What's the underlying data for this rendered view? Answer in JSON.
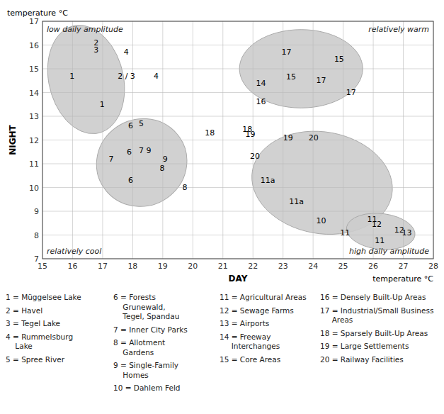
{
  "chart_data": {
    "type": "scatter",
    "xlabel": "DAY",
    "ylabel": "NIGHT",
    "temp_label": "temperature °C",
    "xlim": [
      15,
      28
    ],
    "ylim": [
      7,
      17
    ],
    "xticks": [
      15,
      16,
      17,
      18,
      19,
      20,
      21,
      22,
      23,
      24,
      25,
      26,
      27,
      28
    ],
    "yticks": [
      7,
      8,
      9,
      10,
      11,
      12,
      13,
      14,
      15,
      16,
      17
    ],
    "grid": true,
    "annotations": [
      "low daily amplitude",
      "relatively warm",
      "relatively cool",
      "high daily amplitude"
    ],
    "point_labels": [
      "1",
      "1",
      "2",
      "3",
      "4",
      "2 / 3",
      "4",
      "6",
      "5",
      "7",
      "6",
      "7",
      "9",
      "6",
      "8",
      "9",
      "8",
      "18",
      "18",
      "19",
      "20",
      "19",
      "20",
      "11a",
      "11a",
      "14",
      "16",
      "15",
      "17",
      "17",
      "15",
      "17",
      "10",
      "11",
      "11",
      "12",
      "11",
      "12",
      "13"
    ],
    "x": [
      15.9,
      16.9,
      16.7,
      16.7,
      17.7,
      17.5,
      18.7,
      17.85,
      18.2,
      17.2,
      17.8,
      18.2,
      18.45,
      17.85,
      18.9,
      19.0,
      19.65,
      20.4,
      21.65,
      21.75,
      21.9,
      23.0,
      23.85,
      22.25,
      23.2,
      22.1,
      22.1,
      23.1,
      22.95,
      24.1,
      24.7,
      25.1,
      24.1,
      24.9,
      25.8,
      25.95,
      26.05,
      26.7,
      26.95
    ],
    "values": [
      14.7,
      13.5,
      16.1,
      15.8,
      15.7,
      14.7,
      14.7,
      12.6,
      12.7,
      11.2,
      11.5,
      11.55,
      11.55,
      10.3,
      10.8,
      11.2,
      10.0,
      12.3,
      12.45,
      12.25,
      11.3,
      12.1,
      12.1,
      10.3,
      9.4,
      14.4,
      13.6,
      14.65,
      15.7,
      14.5,
      15.4,
      14.0,
      8.6,
      8.1,
      8.65,
      8.45,
      7.75,
      8.2,
      8.1
    ],
    "ellipses": [
      {
        "cx": 16.45,
        "cy": 14.55,
        "rx": 1.25,
        "ry": 2.3,
        "angle": 8
      },
      {
        "cx": 18.3,
        "cy": 11.05,
        "rx": 1.5,
        "ry": 1.85,
        "angle": -5
      },
      {
        "cx": 23.6,
        "cy": 15.0,
        "rx": 2.05,
        "ry": 1.65,
        "angle": 0
      },
      {
        "cx": 24.3,
        "cy": 10.2,
        "rx": 2.4,
        "ry": 2.1,
        "angle": -28
      },
      {
        "cx": 26.25,
        "cy": 8.15,
        "rx": 1.15,
        "ry": 0.75,
        "angle": -10
      }
    ],
    "ellipse_color": "#cccccc",
    "ellipse_edge_color": "#aaaaaa",
    "legend_text": [
      [
        [
          "1 = Müggelsee Lake"
        ],
        [
          "2 = Havel"
        ],
        [
          "3 = Tegel Lake"
        ],
        [
          "4 = Rummelsburg",
          "    Lake"
        ],
        [
          "5 = Spree River"
        ]
      ],
      [
        [
          "6 = Forests",
          "    Grunewald,",
          "    Tegel, Spandau"
        ],
        [
          "7 = Inner City Parks"
        ],
        [
          "8 = Allotment",
          "    Gardens"
        ],
        [
          "9 = Single-Family",
          "    Homes"
        ],
        [
          "10 = Dahlem Feld"
        ]
      ],
      [
        [
          "11 = Agricultural Areas"
        ],
        [
          "12 = Sewage Farms"
        ],
        [
          "13 = Airports"
        ],
        [
          "14 = Freeway",
          "     Interchanges"
        ],
        [
          "15 = Core Areas"
        ]
      ],
      [
        [
          "16 = Densely Built-Up Areas"
        ],
        [
          "17 = Industrial/Small Business",
          "     Areas"
        ],
        [
          "18 = Sparsely Built-Up Areas"
        ],
        [
          "19 = Large Settlements"
        ],
        [
          "20 = Railway Facilities"
        ]
      ]
    ]
  }
}
